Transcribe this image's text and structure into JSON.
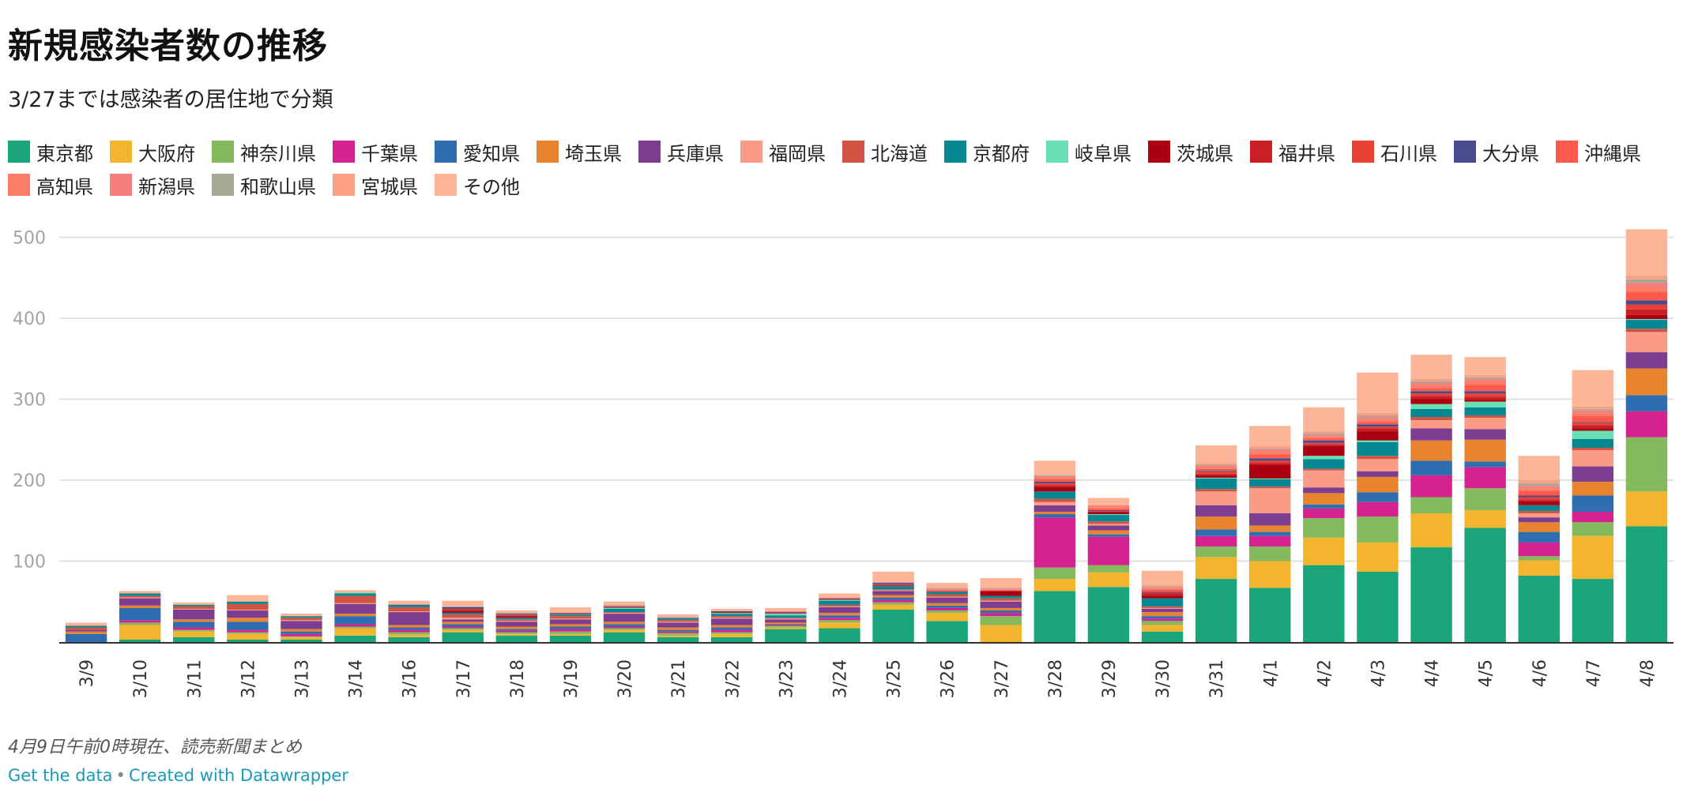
{
  "title": "新規感染者数の推移",
  "subtitle": "3/27までは感染者の居住地で分類",
  "note": "4月9日午前0時現在、読売新聞まとめ",
  "footer": {
    "get_data": "Get the data",
    "separator": "•",
    "created_with": "Created with Datawrapper"
  },
  "chart_data": {
    "type": "bar",
    "stacked": true,
    "ylim": [
      0,
      520
    ],
    "yticks": [
      100,
      200,
      300,
      400,
      500
    ],
    "grid": true,
    "legend_position": "top",
    "categories": [
      "3/9",
      "3/10",
      "3/11",
      "3/12",
      "3/13",
      "3/14",
      "3/16",
      "3/17",
      "3/18",
      "3/19",
      "3/20",
      "3/21",
      "3/22",
      "3/23",
      "3/24",
      "3/25",
      "3/26",
      "3/27",
      "3/28",
      "3/29",
      "3/30",
      "3/31",
      "4/1",
      "4/2",
      "4/3",
      "4/4",
      "4/5",
      "4/6",
      "4/7",
      "4/8"
    ],
    "series": [
      {
        "name": "東京都",
        "color": "#1aa67a",
        "values": [
          0,
          3,
          6,
          3,
          3,
          8,
          6,
          12,
          8,
          8,
          12,
          6,
          6,
          16,
          17,
          40,
          26,
          0,
          63,
          68,
          13,
          78,
          67,
          95,
          87,
          117,
          141,
          82,
          78,
          143
        ]
      },
      {
        "name": "大阪府",
        "color": "#f4b52e",
        "values": [
          0,
          18,
          7,
          7,
          3,
          9,
          3,
          3,
          2,
          2,
          3,
          2,
          4,
          2,
          7,
          6,
          10,
          21,
          15,
          18,
          8,
          27,
          33,
          34,
          36,
          42,
          22,
          19,
          53,
          43
        ]
      },
      {
        "name": "神奈川県",
        "color": "#84b95e",
        "values": [
          0,
          3,
          2,
          2,
          1,
          2,
          3,
          2,
          2,
          3,
          2,
          3,
          2,
          2,
          3,
          3,
          3,
          11,
          14,
          9,
          5,
          13,
          18,
          24,
          32,
          20,
          27,
          5,
          17,
          67
        ]
      },
      {
        "name": "千葉県",
        "color": "#d4238f",
        "values": [
          0,
          3,
          3,
          3,
          3,
          3,
          3,
          2,
          2,
          3,
          2,
          2,
          3,
          1,
          3,
          3,
          3,
          4,
          62,
          35,
          3,
          13,
          13,
          12,
          18,
          27,
          26,
          17,
          13,
          32
        ]
      },
      {
        "name": "愛知県",
        "color": "#2f6db1",
        "values": [
          10,
          15,
          7,
          10,
          3,
          10,
          3,
          3,
          2,
          3,
          3,
          2,
          3,
          1,
          3,
          3,
          3,
          3,
          4,
          3,
          3,
          8,
          5,
          5,
          12,
          18,
          7,
          13,
          20,
          20
        ]
      },
      {
        "name": "埼玉県",
        "color": "#e7842d",
        "values": [
          3,
          3,
          3,
          5,
          3,
          3,
          3,
          3,
          3,
          3,
          3,
          3,
          3,
          2,
          3,
          3,
          3,
          3,
          3,
          5,
          5,
          16,
          8,
          14,
          19,
          25,
          27,
          12,
          17,
          33
        ]
      },
      {
        "name": "兵庫県",
        "color": "#7d3d91",
        "values": [
          2,
          9,
          12,
          9,
          10,
          12,
          16,
          3,
          6,
          6,
          10,
          6,
          8,
          4,
          7,
          5,
          7,
          8,
          8,
          6,
          4,
          14,
          15,
          7,
          7,
          15,
          13,
          6,
          19,
          20
        ]
      },
      {
        "name": "福岡県",
        "color": "#fa9c85",
        "values": [
          0,
          1,
          1,
          1,
          1,
          1,
          1,
          2,
          1,
          1,
          1,
          1,
          1,
          1,
          1,
          1,
          1,
          1,
          4,
          2,
          1,
          17,
          31,
          21,
          15,
          10,
          14,
          5,
          20,
          25
        ]
      },
      {
        "name": "北海道",
        "color": "#d15344",
        "values": [
          3,
          2,
          3,
          7,
          3,
          9,
          5,
          4,
          2,
          3,
          1,
          2,
          2,
          1,
          2,
          1,
          3,
          3,
          4,
          3,
          2,
          3,
          2,
          2,
          4,
          4,
          3,
          3,
          3,
          4
        ]
      },
      {
        "name": "京都府",
        "color": "#068893",
        "values": [
          2,
          3,
          2,
          3,
          2,
          3,
          2,
          2,
          2,
          2,
          4,
          2,
          3,
          3,
          5,
          4,
          3,
          3,
          9,
          8,
          10,
          13,
          9,
          12,
          17,
          10,
          10,
          7,
          11,
          11
        ]
      },
      {
        "name": "岐阜県",
        "color": "#68e0b4",
        "values": [
          0,
          0,
          0,
          0,
          0,
          1,
          0,
          0,
          0,
          0,
          1,
          0,
          1,
          2,
          1,
          0,
          0,
          0,
          0,
          1,
          0,
          1,
          1,
          4,
          2,
          6,
          7,
          0,
          10,
          1
        ]
      },
      {
        "name": "茨城県",
        "color": "#a90012",
        "values": [
          0,
          0,
          0,
          0,
          0,
          0,
          0,
          2,
          2,
          0,
          0,
          0,
          1,
          0,
          0,
          1,
          0,
          6,
          6,
          2,
          3,
          3,
          17,
          12,
          11,
          6,
          2,
          5,
          3,
          5
        ]
      },
      {
        "name": "福井県",
        "color": "#cb1f26",
        "values": [
          0,
          0,
          0,
          0,
          0,
          0,
          0,
          2,
          1,
          0,
          0,
          0,
          0,
          1,
          1,
          0,
          0,
          0,
          2,
          1,
          3,
          2,
          2,
          2,
          4,
          4,
          4,
          2,
          4,
          7
        ]
      },
      {
        "name": "石川県",
        "color": "#e94034",
        "values": [
          0,
          0,
          0,
          0,
          0,
          0,
          0,
          1,
          1,
          1,
          1,
          0,
          0,
          0,
          0,
          1,
          1,
          0,
          2,
          1,
          1,
          3,
          3,
          2,
          2,
          3,
          4,
          3,
          3,
          6
        ]
      },
      {
        "name": "大分県",
        "color": "#484b8e",
        "values": [
          0,
          0,
          0,
          0,
          0,
          0,
          1,
          2,
          1,
          1,
          1,
          1,
          1,
          1,
          1,
          2,
          0,
          0,
          2,
          1,
          1,
          1,
          3,
          3,
          3,
          3,
          3,
          2,
          1,
          5
        ]
      },
      {
        "name": "沖縄県",
        "color": "#ff5a4b",
        "values": [
          0,
          0,
          0,
          0,
          0,
          0,
          0,
          0,
          0,
          0,
          0,
          0,
          0,
          0,
          0,
          0,
          1,
          1,
          3,
          2,
          3,
          2,
          5,
          3,
          3,
          4,
          8,
          6,
          7,
          11
        ]
      },
      {
        "name": "高知県",
        "color": "#fb7c67",
        "values": [
          0,
          0,
          0,
          0,
          0,
          0,
          0,
          0,
          0,
          0,
          1,
          0,
          0,
          0,
          1,
          0,
          1,
          1,
          2,
          2,
          1,
          2,
          3,
          2,
          3,
          3,
          4,
          3,
          4,
          5
        ]
      },
      {
        "name": "新潟県",
        "color": "#f57f7d",
        "values": [
          0,
          0,
          0,
          0,
          0,
          0,
          0,
          0,
          0,
          0,
          0,
          0,
          0,
          1,
          0,
          1,
          1,
          1,
          2,
          2,
          2,
          2,
          3,
          2,
          3,
          3,
          3,
          3,
          3,
          6
        ]
      },
      {
        "name": "和歌山県",
        "color": "#a8a896",
        "values": [
          0,
          0,
          0,
          0,
          0,
          0,
          1,
          1,
          1,
          0,
          1,
          0,
          0,
          0,
          0,
          0,
          1,
          1,
          1,
          0,
          1,
          1,
          1,
          2,
          2,
          2,
          2,
          3,
          2,
          4
        ]
      },
      {
        "name": "宮城県",
        "color": "#faa185",
        "values": [
          0,
          0,
          1,
          0,
          0,
          0,
          0,
          0,
          0,
          0,
          0,
          0,
          0,
          0,
          0,
          0,
          0,
          0,
          1,
          1,
          2,
          2,
          3,
          2,
          3,
          3,
          3,
          4,
          3,
          5
        ]
      },
      {
        "name": "その他",
        "color": "#fdb597",
        "values": [
          4,
          3,
          2,
          8,
          3,
          3,
          4,
          7,
          3,
          7,
          4,
          4,
          3,
          4,
          5,
          13,
          6,
          12,
          17,
          8,
          17,
          22,
          25,
          30,
          50,
          30,
          22,
          30,
          45,
          57
        ]
      }
    ]
  }
}
